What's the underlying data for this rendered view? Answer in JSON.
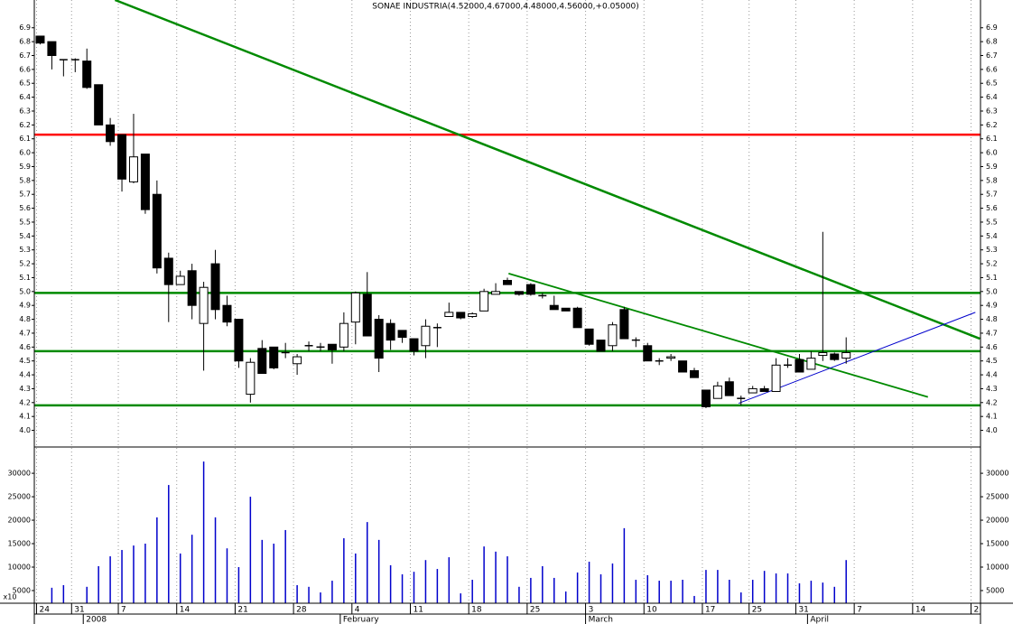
{
  "chart_data": [
    {
      "type": "candlestick",
      "title": "SONAE INDUSTRIA(4.52000,4.67000,4.48000,4.56000,+0.05000)",
      "categories": [
        "24",
        null,
        null,
        "31",
        null,
        null,
        null,
        "7",
        null,
        null,
        null,
        null,
        "14",
        null,
        null,
        null,
        null,
        "21",
        null,
        null,
        null,
        null,
        "28",
        null,
        null,
        null,
        null,
        "4",
        null,
        null,
        null,
        null,
        "11",
        null,
        null,
        null,
        null,
        "18",
        null,
        null,
        null,
        null,
        "25",
        null,
        null,
        null,
        null,
        "3",
        null,
        null,
        null,
        null,
        "10",
        null,
        null,
        null,
        null,
        "17",
        null,
        null,
        null,
        "25",
        null,
        null,
        null,
        "31",
        null,
        null,
        null,
        null,
        "7",
        null,
        null,
        null,
        null,
        "14",
        null,
        null,
        null,
        null,
        "2"
      ],
      "periods": [
        null,
        null,
        null,
        null,
        "2008",
        null,
        null,
        null,
        null,
        null,
        null,
        null,
        null,
        null,
        null,
        null,
        null,
        null,
        null,
        null,
        null,
        null,
        null,
        null,
        null,
        null,
        "February",
        null,
        null,
        null,
        null,
        null,
        null,
        null,
        null,
        null,
        null,
        null,
        null,
        null,
        null,
        null,
        null,
        null,
        null,
        null,
        null,
        "March",
        null,
        null,
        null,
        null,
        null,
        null,
        null,
        null,
        null,
        null,
        null,
        null,
        null,
        null,
        null,
        null,
        null,
        null,
        "April",
        null,
        null,
        null,
        null,
        null,
        null,
        null,
        null,
        null,
        null,
        null,
        null,
        null,
        null
      ],
      "open": [
        6.84,
        6.8,
        6.67,
        6.67,
        6.66,
        6.49,
        6.2,
        6.13,
        5.79,
        5.99,
        5.7,
        5.24,
        5.05,
        5.15,
        4.77,
        5.2,
        4.9,
        4.8,
        4.26,
        4.59,
        4.6,
        4.56,
        4.48,
        4.61,
        4.6,
        4.62,
        4.6,
        4.78,
        4.98,
        4.8,
        4.77,
        4.72,
        4.66,
        4.61,
        4.74,
        4.82,
        4.85,
        4.82,
        4.86,
        4.98,
        5.08,
        5.0,
        5.05,
        4.97,
        4.9,
        4.88,
        4.88,
        4.73,
        4.65,
        4.61,
        4.87,
        4.65,
        4.61,
        4.5,
        4.52,
        4.5,
        4.43,
        4.29,
        4.23,
        4.35,
        4.23,
        4.27,
        4.3,
        4.28,
        4.47,
        4.51,
        4.44,
        4.54,
        4.55,
        4.52,
        null,
        null,
        null,
        null,
        null,
        null,
        null,
        null,
        null,
        null,
        null
      ],
      "high": [
        6.84,
        6.8,
        6.67,
        6.68,
        6.75,
        6.49,
        6.25,
        6.13,
        6.28,
        5.99,
        5.8,
        5.28,
        5.15,
        5.2,
        5.07,
        5.3,
        4.97,
        4.8,
        4.52,
        4.65,
        4.6,
        4.63,
        4.55,
        4.64,
        4.63,
        4.62,
        4.85,
        5.0,
        5.14,
        4.83,
        4.8,
        4.72,
        4.66,
        4.8,
        4.77,
        4.92,
        4.85,
        4.85,
        5.02,
        5.06,
        5.1,
        5.0,
        5.06,
        4.99,
        4.97,
        4.88,
        4.89,
        4.73,
        4.65,
        4.78,
        4.89,
        4.67,
        4.63,
        4.52,
        4.55,
        4.5,
        4.45,
        4.29,
        4.35,
        4.38,
        4.25,
        4.32,
        4.32,
        4.52,
        4.52,
        4.55,
        4.57,
        5.43,
        4.56,
        4.67,
        null,
        null,
        null,
        null,
        null,
        null,
        null,
        null,
        null,
        null,
        null
      ],
      "low": [
        6.78,
        6.6,
        6.55,
        6.58,
        6.46,
        6.2,
        6.05,
        5.72,
        5.78,
        5.56,
        5.13,
        4.78,
        5.05,
        4.8,
        4.43,
        4.8,
        4.75,
        4.45,
        4.2,
        4.41,
        4.44,
        4.52,
        4.4,
        4.57,
        4.57,
        4.48,
        4.57,
        4.62,
        4.68,
        4.42,
        4.58,
        4.63,
        4.54,
        4.52,
        4.6,
        4.82,
        4.8,
        4.81,
        4.86,
        4.98,
        5.05,
        4.97,
        4.97,
        4.95,
        4.87,
        4.86,
        4.74,
        4.61,
        4.57,
        4.57,
        4.66,
        4.6,
        4.5,
        4.47,
        4.5,
        4.42,
        4.38,
        4.16,
        4.23,
        4.25,
        4.18,
        4.27,
        4.28,
        4.28,
        4.45,
        4.42,
        4.44,
        4.5,
        4.5,
        4.48,
        null,
        null,
        null,
        null,
        null,
        null,
        null,
        null,
        null,
        null,
        null
      ],
      "close": [
        6.79,
        6.7,
        6.67,
        6.67,
        6.47,
        6.2,
        6.08,
        5.81,
        5.97,
        5.59,
        5.17,
        5.05,
        5.11,
        4.9,
        5.03,
        4.87,
        4.78,
        4.5,
        4.49,
        4.41,
        4.45,
        4.56,
        4.53,
        4.61,
        4.6,
        4.58,
        4.77,
        4.99,
        4.68,
        4.52,
        4.65,
        4.67,
        4.57,
        4.75,
        4.74,
        4.85,
        4.81,
        4.84,
        5.0,
        5.0,
        5.05,
        4.98,
        4.98,
        4.97,
        4.87,
        4.86,
        4.74,
        4.62,
        4.57,
        4.76,
        4.66,
        4.65,
        4.5,
        4.5,
        4.53,
        4.42,
        4.38,
        4.17,
        4.32,
        4.25,
        4.23,
        4.3,
        4.28,
        4.47,
        4.47,
        4.42,
        4.52,
        4.56,
        4.51,
        4.56,
        null,
        null,
        null,
        null,
        null,
        null,
        null,
        null,
        null,
        null,
        null
      ],
      "ylim": [
        3.88,
        7.1
      ],
      "yticks": [
        {
          "value": 4.0,
          "label": "4.0"
        },
        4.1,
        4.2,
        4.3,
        4.4,
        4.5,
        4.6,
        4.7,
        4.8,
        4.9,
        {
          "value": 5.0,
          "label": "5.0"
        },
        5.1,
        5.2,
        5.3,
        5.4,
        5.5,
        5.6,
        5.7,
        5.8,
        5.9,
        {
          "value": 6.0,
          "label": "6.0"
        },
        6.1,
        6.2,
        6.3,
        6.4,
        6.5,
        6.6,
        6.7,
        6.8,
        6.9
      ],
      "hlines": [
        {
          "value": 6.13,
          "color": "#ff0000"
        },
        {
          "value": 4.99,
          "color": "#008a00"
        },
        {
          "value": 4.57,
          "color": "#008a00"
        },
        {
          "value": 4.18,
          "color": "#008a00"
        }
      ],
      "trendlines": [
        {
          "from": [
            6.41,
            7.1
          ],
          "to": [
            80.45,
            4.66
          ],
          "color": "#008a00"
        },
        {
          "from": [
            40.1,
            5.13
          ],
          "to": [
            76.0,
            4.24
          ],
          "color": "#008a00"
        },
        {
          "from": [
            59.8,
            4.195
          ],
          "to": [
            80.06,
            4.85
          ],
          "color": "#0000cc"
        }
      ],
      "grid": true
    },
    {
      "type": "bar",
      "unit_label": "x10",
      "values": [
        null,
        5600,
        6150,
        null,
        5800,
        10200,
        12300,
        13650,
        14600,
        15000,
        20600,
        27500,
        12900,
        16900,
        32500,
        20600,
        14000,
        10000,
        25000,
        15800,
        15000,
        17900,
        6150,
        5800,
        4600,
        7100,
        16150,
        12900,
        19600,
        15800,
        10400,
        8460,
        9000,
        11500,
        9600,
        12100,
        4400,
        7300,
        14400,
        13300,
        12300,
        5800,
        7700,
        10200,
        7700,
        4800,
        8850,
        11150,
        8460,
        10770,
        18300,
        7300,
        8270,
        7100,
        7100,
        7300,
        3850,
        9400,
        9400,
        7300,
        4600,
        7300,
        9200,
        8650,
        8650,
        6540,
        7100,
        6700,
        5800,
        11500,
        null,
        null,
        null,
        null,
        null,
        null,
        null,
        null,
        null,
        null,
        null
      ],
      "color": "#0000cc",
      "ylim": [
        2300,
        35600
      ],
      "yticks": [
        5000,
        10000,
        15000,
        20000,
        25000,
        30000
      ]
    }
  ]
}
